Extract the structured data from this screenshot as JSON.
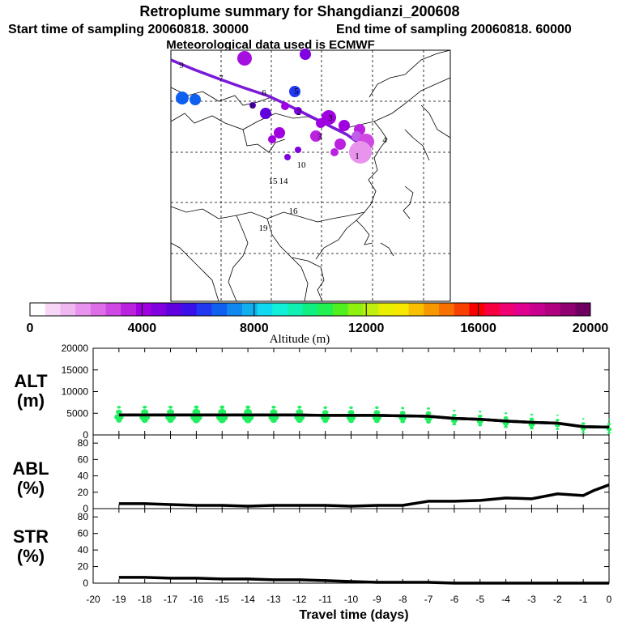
{
  "header": {
    "title": "Retroplume summary for Shangdianzi_200608",
    "start_label": "Start time of sampling 20060818. 30000",
    "end_label": "End time of sampling 20060818. 60000",
    "met_label": "Meteorological data used is ECMWF"
  },
  "colorbar": {
    "ticks": [
      "0",
      "4000",
      "8000",
      "12000",
      "16000",
      "20000"
    ],
    "label": "Altitude  (m)",
    "colors": [
      "#ffffff",
      "#f8d6f8",
      "#f0b8f0",
      "#e894ee",
      "#de6ee8",
      "#d048e4",
      "#bb22e0",
      "#a000e0",
      "#8000e0",
      "#6000dc",
      "#3a10e8",
      "#2038f0",
      "#1060f0",
      "#1088f0",
      "#10b0f0",
      "#10d8f0",
      "#10f0d8",
      "#10f0b0",
      "#10f080",
      "#20f050",
      "#50f020",
      "#90f010",
      "#c0f010",
      "#e8f000",
      "#f8e800",
      "#f8c000",
      "#f89800",
      "#f87000",
      "#f84000",
      "#f80000",
      "#f80040",
      "#f00070",
      "#e00090",
      "#c80090",
      "#b00080",
      "#900070",
      "#700060"
    ]
  },
  "map": {
    "labels": [
      {
        "t": "9",
        "c": "#000000"
      },
      {
        "t": "7",
        "c": "#000000"
      },
      {
        "t": "6",
        "c": "#000000"
      },
      {
        "t": "5",
        "c": "#000000"
      },
      {
        "t": "3",
        "c": "#000000"
      },
      {
        "t": "2",
        "c": "#000000"
      },
      {
        "t": "1",
        "c": "#000000"
      },
      {
        "t": "10",
        "c": "#000000"
      },
      {
        "t": "16",
        "c": "#000000"
      },
      {
        "t": "19",
        "c": "#000000"
      },
      {
        "t": "15",
        "c": "#000000"
      },
      {
        "t": "14",
        "c": "#000000"
      },
      {
        "t": "4",
        "c": "#000000"
      },
      {
        "t": "8",
        "c": "#000000"
      },
      {
        "t": "3",
        "c": "#000000"
      }
    ]
  },
  "panels": {
    "alt": {
      "name": "ALT",
      "unit": "(m)",
      "yticks": [
        "0",
        "5000",
        "10000",
        "15000",
        "20000"
      ]
    },
    "abl": {
      "name": "ABL",
      "unit": "(%)",
      "yticks": [
        "0",
        "20",
        "40",
        "60",
        "80"
      ]
    },
    "str": {
      "name": "STR",
      "unit": "(%)",
      "yticks": [
        "0",
        "20",
        "40",
        "60",
        "80"
      ]
    }
  },
  "chart_data": {
    "type": "line",
    "xlabel": "Travel time (days)",
    "x_ticks": [
      "-20",
      "-19",
      "-18",
      "-17",
      "-16",
      "-15",
      "-14",
      "-13",
      "-12",
      "-11",
      "-10",
      "-9",
      "-8",
      "-7",
      "-6",
      "-5",
      "-4",
      "-3",
      "-2",
      "-1",
      "0"
    ],
    "xlim": [
      -20,
      0
    ],
    "series": [
      {
        "name": "ALT",
        "ylim": [
          0,
          20000
        ],
        "x": [
          -19,
          -18,
          -17,
          -16,
          -15,
          -14,
          -13,
          -12,
          -11,
          -10,
          -9,
          -8,
          -7,
          -6,
          -5,
          -4,
          -3,
          -2,
          -1,
          0
        ],
        "values": [
          4600,
          4600,
          4600,
          4600,
          4600,
          4600,
          4600,
          4600,
          4500,
          4500,
          4500,
          4400,
          4300,
          3800,
          3600,
          3200,
          2900,
          2700,
          1900,
          1800
        ]
      },
      {
        "name": "ABL",
        "ylim": [
          0,
          90
        ],
        "x": [
          -19,
          -18,
          -17,
          -16,
          -15,
          -14,
          -13,
          -12,
          -11,
          -10,
          -9,
          -8,
          -7,
          -6,
          -5,
          -4,
          -3,
          -2,
          -1,
          -0.6,
          0
        ],
        "values": [
          6,
          6,
          5,
          4,
          4,
          3,
          4,
          4,
          4,
          3,
          4,
          4,
          9,
          9,
          10,
          13,
          12,
          18,
          16,
          22,
          29
        ]
      },
      {
        "name": "STR",
        "ylim": [
          0,
          90
        ],
        "x": [
          -19,
          -18,
          -17,
          -16,
          -15,
          -14,
          -13,
          -12,
          -11,
          -10,
          -9,
          -8,
          -7,
          -6,
          -5,
          -4,
          -3,
          -2,
          -1,
          0
        ],
        "values": [
          7,
          7,
          6,
          6,
          5,
          5,
          4,
          4,
          3,
          2,
          1,
          1,
          1,
          0,
          0,
          0,
          0,
          0,
          0,
          0
        ]
      }
    ]
  }
}
